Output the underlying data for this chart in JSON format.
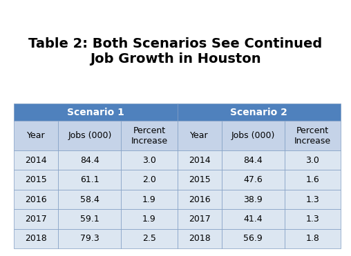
{
  "title": "Table 2: Both Scenarios See Continued\nJob Growth in Houston",
  "title_fontsize": 14,
  "title_fontweight": "bold",
  "header1_label": "Scenario 1",
  "header2_label": "Scenario 2",
  "col_headers": [
    "Year",
    "Jobs (000)",
    "Percent\nIncrease",
    "Year",
    "Jobs (000)",
    "Percent\nIncrease"
  ],
  "rows": [
    [
      "2014",
      "84.4",
      "3.0",
      "2014",
      "84.4",
      "3.0"
    ],
    [
      "2015",
      "61.1",
      "2.0",
      "2015",
      "47.6",
      "1.6"
    ],
    [
      "2016",
      "58.4",
      "1.9",
      "2016",
      "38.9",
      "1.3"
    ],
    [
      "2017",
      "59.1",
      "1.9",
      "2017",
      "41.4",
      "1.3"
    ],
    [
      "2018",
      "79.3",
      "2.5",
      "2018",
      "56.9",
      "1.8"
    ]
  ],
  "scenario_header_color": "#4f81bd",
  "scenario_header_text_color": "#ffffff",
  "col_header_bg": "#c5d3e8",
  "col_header_text_color": "#000000",
  "data_row_bg": "#dce6f1",
  "data_row_text_color": "#000000",
  "table_border_color": "#7f9dc3",
  "background_color": "#ffffff",
  "cell_fontsize": 9,
  "header_fontsize": 10
}
